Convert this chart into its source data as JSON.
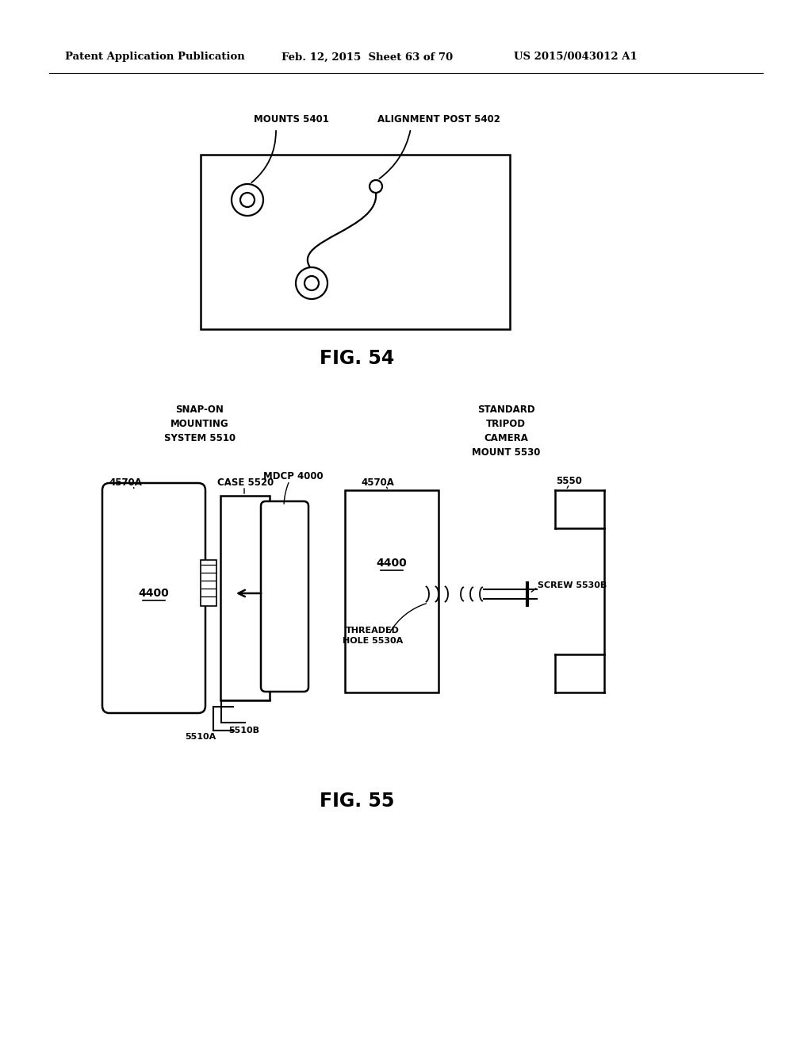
{
  "bg_color": "#ffffff",
  "header_left": "Patent Application Publication",
  "header_mid": "Feb. 12, 2015  Sheet 63 of 70",
  "header_right": "US 2015/0043012 A1",
  "fig54_label": "FIG. 54",
  "fig55_label": "FIG. 55",
  "text_color": "#000000"
}
